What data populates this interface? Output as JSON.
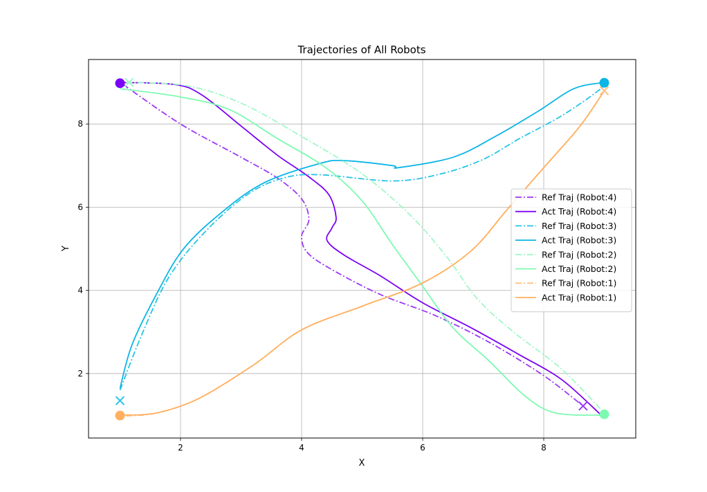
{
  "chart_data": {
    "type": "line",
    "title": "Trajectories of All Robots",
    "xlabel": "X",
    "ylabel": "Y",
    "xlim": [
      0.48,
      9.52
    ],
    "ylim": [
      0.45,
      9.55
    ],
    "xticks": [
      2,
      4,
      6,
      8
    ],
    "yticks": [
      2,
      4,
      6,
      8
    ],
    "grid": true,
    "legend_position": "center-right",
    "series": [
      {
        "name": "Ref Traj (Robot:4)",
        "robot": 4,
        "kind": "ref",
        "dash": "dashdot",
        "color": "#9b38f6",
        "points": [
          [
            1.05,
            8.95
          ],
          [
            2.0,
            8.0
          ],
          [
            3.0,
            7.2
          ],
          [
            3.6,
            6.7
          ],
          [
            4.0,
            6.2
          ],
          [
            4.12,
            5.7
          ],
          [
            4.0,
            5.3
          ],
          [
            4.1,
            4.9
          ],
          [
            4.5,
            4.5
          ],
          [
            5.3,
            3.9
          ],
          [
            6.2,
            3.4
          ],
          [
            7.1,
            2.75
          ],
          [
            8.0,
            1.95
          ],
          [
            8.65,
            1.22
          ]
        ],
        "start": null,
        "end": [
          8.65,
          1.22
        ]
      },
      {
        "name": "Act Traj (Robot:4)",
        "robot": 4,
        "kind": "act",
        "dash": "solid",
        "color": "#7a00f6",
        "points": [
          [
            1.0,
            9.0
          ],
          [
            1.9,
            8.95
          ],
          [
            2.35,
            8.7
          ],
          [
            3.0,
            7.95
          ],
          [
            3.6,
            7.25
          ],
          [
            4.1,
            6.75
          ],
          [
            4.45,
            6.3
          ],
          [
            4.57,
            5.75
          ],
          [
            4.5,
            5.5
          ],
          [
            4.42,
            5.2
          ],
          [
            4.7,
            4.85
          ],
          [
            5.3,
            4.35
          ],
          [
            6.0,
            3.7
          ],
          [
            6.8,
            3.1
          ],
          [
            7.6,
            2.45
          ],
          [
            8.3,
            1.85
          ],
          [
            8.95,
            1.0
          ]
        ],
        "start": [
          1.0,
          8.98
        ],
        "end": null
      },
      {
        "name": "Ref Traj (Robot:3)",
        "robot": 3,
        "kind": "ref",
        "dash": "dashdot",
        "color": "#26c4e6",
        "points": [
          [
            1.0,
            1.6
          ],
          [
            1.35,
            2.9
          ],
          [
            1.8,
            4.3
          ],
          [
            2.4,
            5.4
          ],
          [
            3.1,
            6.3
          ],
          [
            3.7,
            6.7
          ],
          [
            4.3,
            6.78
          ],
          [
            5.5,
            6.63
          ],
          [
            6.3,
            6.8
          ],
          [
            7.0,
            7.15
          ],
          [
            7.6,
            7.65
          ],
          [
            8.3,
            8.2
          ],
          [
            8.9,
            8.8
          ],
          [
            8.98,
            8.98
          ]
        ],
        "start": null,
        "end": [
          1.0,
          1.35
        ]
      },
      {
        "name": "Act Traj (Robot:3)",
        "robot": 3,
        "kind": "act",
        "dash": "solid",
        "color": "#0bb5e5",
        "points": [
          [
            1.0,
            1.65
          ],
          [
            1.2,
            2.7
          ],
          [
            1.6,
            3.9
          ],
          [
            2.05,
            5.0
          ],
          [
            2.7,
            5.9
          ],
          [
            3.4,
            6.6
          ],
          [
            4.3,
            7.05
          ],
          [
            4.7,
            7.12
          ],
          [
            5.5,
            7.0
          ],
          [
            5.6,
            6.95
          ],
          [
            6.5,
            7.2
          ],
          [
            7.2,
            7.7
          ],
          [
            7.9,
            8.3
          ],
          [
            8.5,
            8.85
          ],
          [
            9.0,
            9.0
          ]
        ],
        "start": [
          9.0,
          8.99
        ],
        "end": null
      },
      {
        "name": "Ref Traj (Robot:2)",
        "robot": 2,
        "kind": "ref",
        "dash": "dashdot",
        "color": "#a0f8c8",
        "points": [
          [
            1.1,
            9.0
          ],
          [
            2.1,
            8.92
          ],
          [
            3.0,
            8.5
          ],
          [
            4.0,
            7.7
          ],
          [
            5.0,
            6.8
          ],
          [
            5.8,
            5.8
          ],
          [
            6.4,
            4.8
          ],
          [
            6.9,
            3.8
          ],
          [
            7.5,
            3.0
          ],
          [
            8.3,
            2.1
          ],
          [
            9.0,
            1.05
          ]
        ],
        "start": null,
        "end": [
          1.15,
          9.0
        ]
      },
      {
        "name": "Act Traj (Robot:2)",
        "robot": 2,
        "kind": "act",
        "dash": "solid",
        "color": "#7dfab0",
        "points": [
          [
            1.0,
            8.85
          ],
          [
            2.0,
            8.65
          ],
          [
            2.8,
            8.35
          ],
          [
            3.6,
            7.65
          ],
          [
            4.4,
            6.95
          ],
          [
            5.0,
            6.15
          ],
          [
            5.5,
            5.1
          ],
          [
            6.0,
            4.1
          ],
          [
            6.5,
            3.1
          ],
          [
            7.1,
            2.3
          ],
          [
            7.7,
            1.45
          ],
          [
            8.2,
            1.05
          ],
          [
            9.0,
            1.0
          ]
        ],
        "start": [
          9.0,
          1.02
        ],
        "end": null
      },
      {
        "name": "Ref Traj (Robot:1)",
        "robot": 1,
        "kind": "ref",
        "dash": "dashdot",
        "color": "#ffc080",
        "points": [
          [
            1.1,
            0.98
          ],
          [
            1.6,
            1.05
          ],
          [
            2.3,
            1.4
          ],
          [
            3.2,
            2.2
          ],
          [
            4.0,
            3.05
          ],
          [
            5.0,
            3.62
          ],
          [
            6.0,
            4.18
          ],
          [
            6.8,
            4.95
          ],
          [
            7.4,
            5.95
          ],
          [
            8.0,
            6.95
          ],
          [
            8.6,
            7.95
          ],
          [
            9.0,
            8.8
          ]
        ],
        "start": null,
        "end": [
          9.0,
          8.8
        ]
      },
      {
        "name": "Act Traj (Robot:1)",
        "robot": 1,
        "kind": "act",
        "dash": "solid",
        "color": "#ffb060",
        "points": [
          [
            1.0,
            1.0
          ],
          [
            1.6,
            1.05
          ],
          [
            2.3,
            1.4
          ],
          [
            3.2,
            2.2
          ],
          [
            4.0,
            3.05
          ],
          [
            5.0,
            3.62
          ],
          [
            6.0,
            4.18
          ],
          [
            6.8,
            4.95
          ],
          [
            7.4,
            5.95
          ],
          [
            8.0,
            6.95
          ],
          [
            8.6,
            7.95
          ],
          [
            9.0,
            8.8
          ]
        ],
        "start": [
          1.0,
          0.99
        ],
        "end": null
      }
    ]
  }
}
